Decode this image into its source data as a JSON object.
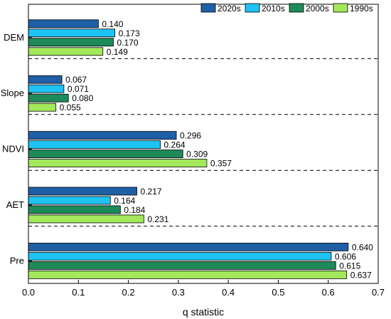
{
  "chart_data": {
    "type": "bar",
    "orientation": "horizontal",
    "categories": [
      "DEM",
      "Slope",
      "NDVI",
      "AET",
      "Pre"
    ],
    "series": [
      {
        "name": "2020s",
        "color": "#1f5fa6",
        "values": [
          0.14,
          0.067,
          0.296,
          0.217,
          0.64
        ]
      },
      {
        "name": "2010s",
        "color": "#1ec3f4",
        "values": [
          0.173,
          0.071,
          0.264,
          0.164,
          0.606
        ]
      },
      {
        "name": "2000s",
        "color": "#1e8a5a",
        "values": [
          0.17,
          0.08,
          0.309,
          0.184,
          0.615
        ]
      },
      {
        "name": "1990s",
        "color": "#a3e85c",
        "values": [
          0.149,
          0.055,
          0.357,
          0.231,
          0.637
        ]
      }
    ],
    "data_labels": [
      [
        "0.140",
        "0.173",
        "0.170",
        "0.149"
      ],
      [
        "0.067",
        "0.071",
        "0.080",
        "0.055"
      ],
      [
        "0.296",
        "0.264",
        "0.309",
        "0.357"
      ],
      [
        "0.217",
        "0.164",
        "0.184",
        "0.231"
      ],
      [
        "0.640",
        "0.606",
        "0.615",
        "0.637"
      ]
    ],
    "xlabel": "q statistic",
    "ylabel": "",
    "title": "",
    "xlim": [
      0.0,
      0.7
    ],
    "xticks": [
      "0.0",
      "0.1",
      "0.2",
      "0.3",
      "0.4",
      "0.5",
      "0.6",
      "0.7"
    ],
    "grid": false,
    "category_separators": "dashed",
    "legend_position": "top-right"
  }
}
